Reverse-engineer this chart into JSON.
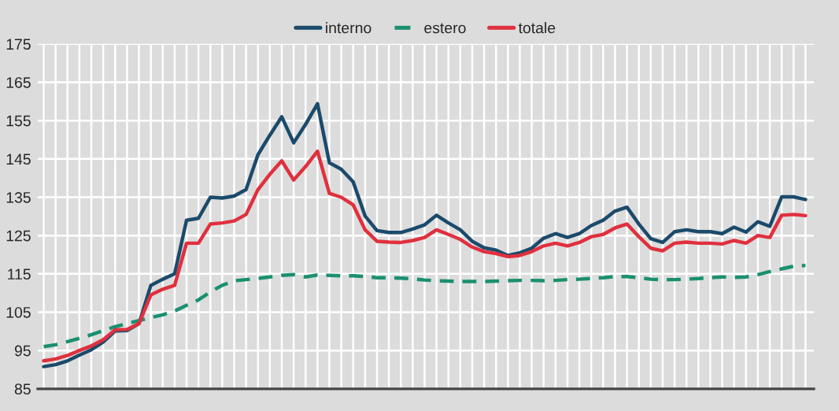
{
  "chart_data": {
    "type": "line",
    "categories": [
      null,
      null,
      null,
      null,
      null,
      null,
      null,
      null,
      null,
      null,
      null,
      null,
      null,
      null,
      null,
      null,
      null,
      null,
      null,
      null,
      null,
      null,
      null,
      null,
      null,
      null,
      null,
      null,
      null,
      null,
      null,
      null,
      null,
      null,
      null,
      null,
      null,
      null,
      null,
      null,
      null,
      null,
      null,
      null,
      null,
      null,
      null,
      null,
      null,
      null,
      null,
      null,
      null,
      null,
      null,
      null,
      null,
      null,
      null,
      null,
      null,
      null,
      null,
      null,
      null
    ],
    "series": [
      {
        "name": "interno",
        "color": "#1b4a6b",
        "line_style": "solid",
        "values": [
          90.8,
          91.3,
          92.3,
          93.8,
          95.2,
          97.2,
          100.1,
          100.2,
          102,
          112,
          113.6,
          115,
          129,
          129.5,
          135,
          134.8,
          135.3,
          137,
          146.1,
          151.2,
          156,
          149.2,
          154,
          159.4,
          144,
          142.3,
          139,
          130.1,
          126.3,
          125.8,
          125.8,
          126.7,
          127.8,
          130.3,
          128.3,
          126.5,
          123.5,
          121.8,
          121.2,
          119.8,
          120.5,
          121.7,
          124.3,
          125.5,
          124.5,
          125.5,
          127.6,
          129,
          131.4,
          132.4,
          128,
          124.2,
          123.2,
          126,
          126.5,
          126,
          126,
          125.5,
          127.2,
          125.9,
          128.6,
          127.4,
          135.1,
          135.1,
          134.4
        ]
      },
      {
        "name": "estero",
        "color": "#1a9070",
        "line_style": "dashed",
        "values": [
          96,
          96.5,
          97.3,
          98.2,
          99.1,
          100.2,
          101.2,
          102,
          102.8,
          103.6,
          104.3,
          105.3,
          106.8,
          108.2,
          110.3,
          112,
          113.2,
          113.5,
          113.8,
          114.2,
          114.6,
          114.8,
          114.2,
          114.7,
          114.6,
          114.5,
          114.5,
          114.3,
          114,
          114,
          113.9,
          113.7,
          113.4,
          113.2,
          113.1,
          113,
          113,
          113,
          113.1,
          113.2,
          113.3,
          113.3,
          113.2,
          113.3,
          113.5,
          113.6,
          113.8,
          114,
          114.3,
          114.3,
          114,
          113.6,
          113.5,
          113.5,
          113.6,
          113.8,
          114,
          114.2,
          114.1,
          114.2,
          114.8,
          115.6,
          116.3,
          117,
          117.2
        ]
      },
      {
        "name": "totale",
        "color": "#e0303e",
        "line_style": "solid",
        "values": [
          92.3,
          92.8,
          93.7,
          95,
          96.2,
          97.8,
          100.4,
          100.5,
          102,
          109.5,
          111,
          112,
          123,
          123,
          128,
          128.3,
          128.8,
          130.5,
          137,
          141,
          144.5,
          139.5,
          143,
          147,
          136,
          135,
          133,
          126.5,
          123.5,
          123.3,
          123.2,
          123.7,
          124.5,
          126.5,
          125.3,
          124,
          122,
          120.8,
          120.3,
          119.5,
          119.8,
          120.8,
          122.3,
          123,
          122.3,
          123.2,
          124.7,
          125.3,
          127,
          128,
          124.7,
          121.7,
          121,
          123,
          123.3,
          123,
          123,
          122.8,
          123.7,
          123,
          125,
          124.5,
          130.3,
          130.5,
          130.2
        ]
      }
    ],
    "ylim": [
      85,
      175
    ],
    "yticks": [
      85,
      95,
      105,
      115,
      125,
      135,
      145,
      155,
      165,
      175
    ],
    "grid": true,
    "legend": "top",
    "marker": "none",
    "tick_labels": "y"
  }
}
